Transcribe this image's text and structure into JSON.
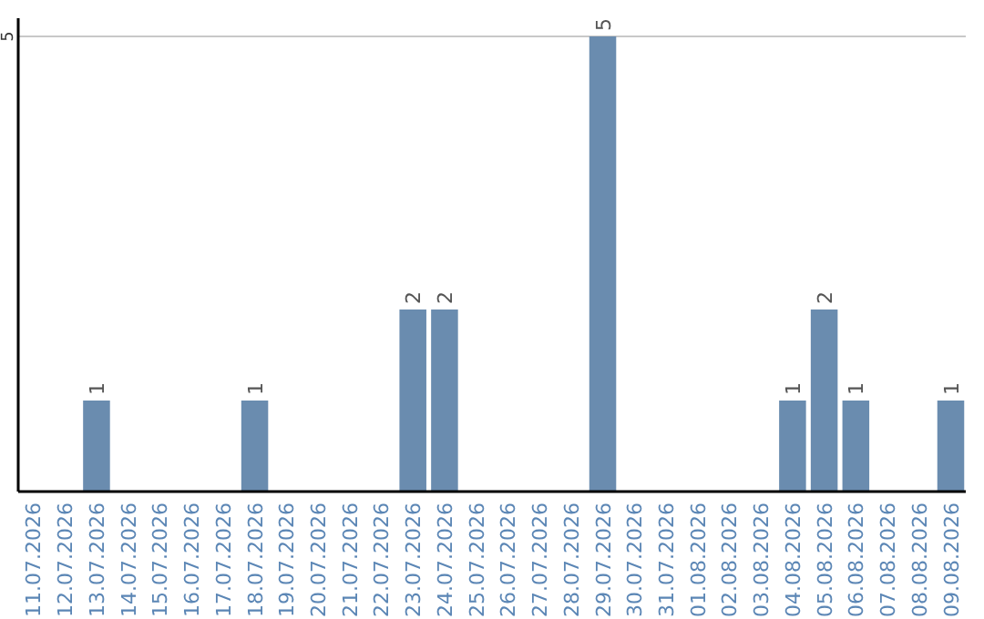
{
  "chart_data": {
    "type": "bar",
    "categories": [
      "11.07.2026",
      "12.07.2026",
      "13.07.2026",
      "14.07.2026",
      "15.07.2026",
      "16.07.2026",
      "17.07.2026",
      "18.07.2026",
      "19.07.2026",
      "20.07.2026",
      "21.07.2026",
      "22.07.2026",
      "23.07.2026",
      "24.07.2026",
      "25.07.2026",
      "26.07.2026",
      "27.07.2026",
      "28.07.2026",
      "29.07.2026",
      "30.07.2026",
      "31.07.2026",
      "01.08.2026",
      "02.08.2026",
      "03.08.2026",
      "04.08.2026",
      "05.08.2026",
      "06.08.2026",
      "07.08.2026",
      "08.08.2026",
      "09.08.2026"
    ],
    "values": [
      0,
      0,
      1,
      0,
      0,
      0,
      0,
      1,
      0,
      0,
      0,
      0,
      2,
      2,
      0,
      0,
      0,
      0,
      5,
      0,
      0,
      0,
      0,
      0,
      1,
      2,
      1,
      0,
      0,
      1
    ],
    "value_labels": [
      null,
      null,
      "1",
      null,
      null,
      null,
      null,
      "1",
      null,
      null,
      null,
      null,
      "2",
      "2",
      null,
      null,
      null,
      null,
      "5",
      null,
      null,
      null,
      null,
      null,
      "1",
      "2",
      "1",
      null,
      null,
      "1"
    ],
    "color": "#6a8caf",
    "ylim": [
      0,
      5
    ],
    "yticks": [
      5
    ],
    "ref_lines": [
      {
        "axis": "y",
        "value": 5,
        "color": "#c8c8c8"
      }
    ]
  }
}
